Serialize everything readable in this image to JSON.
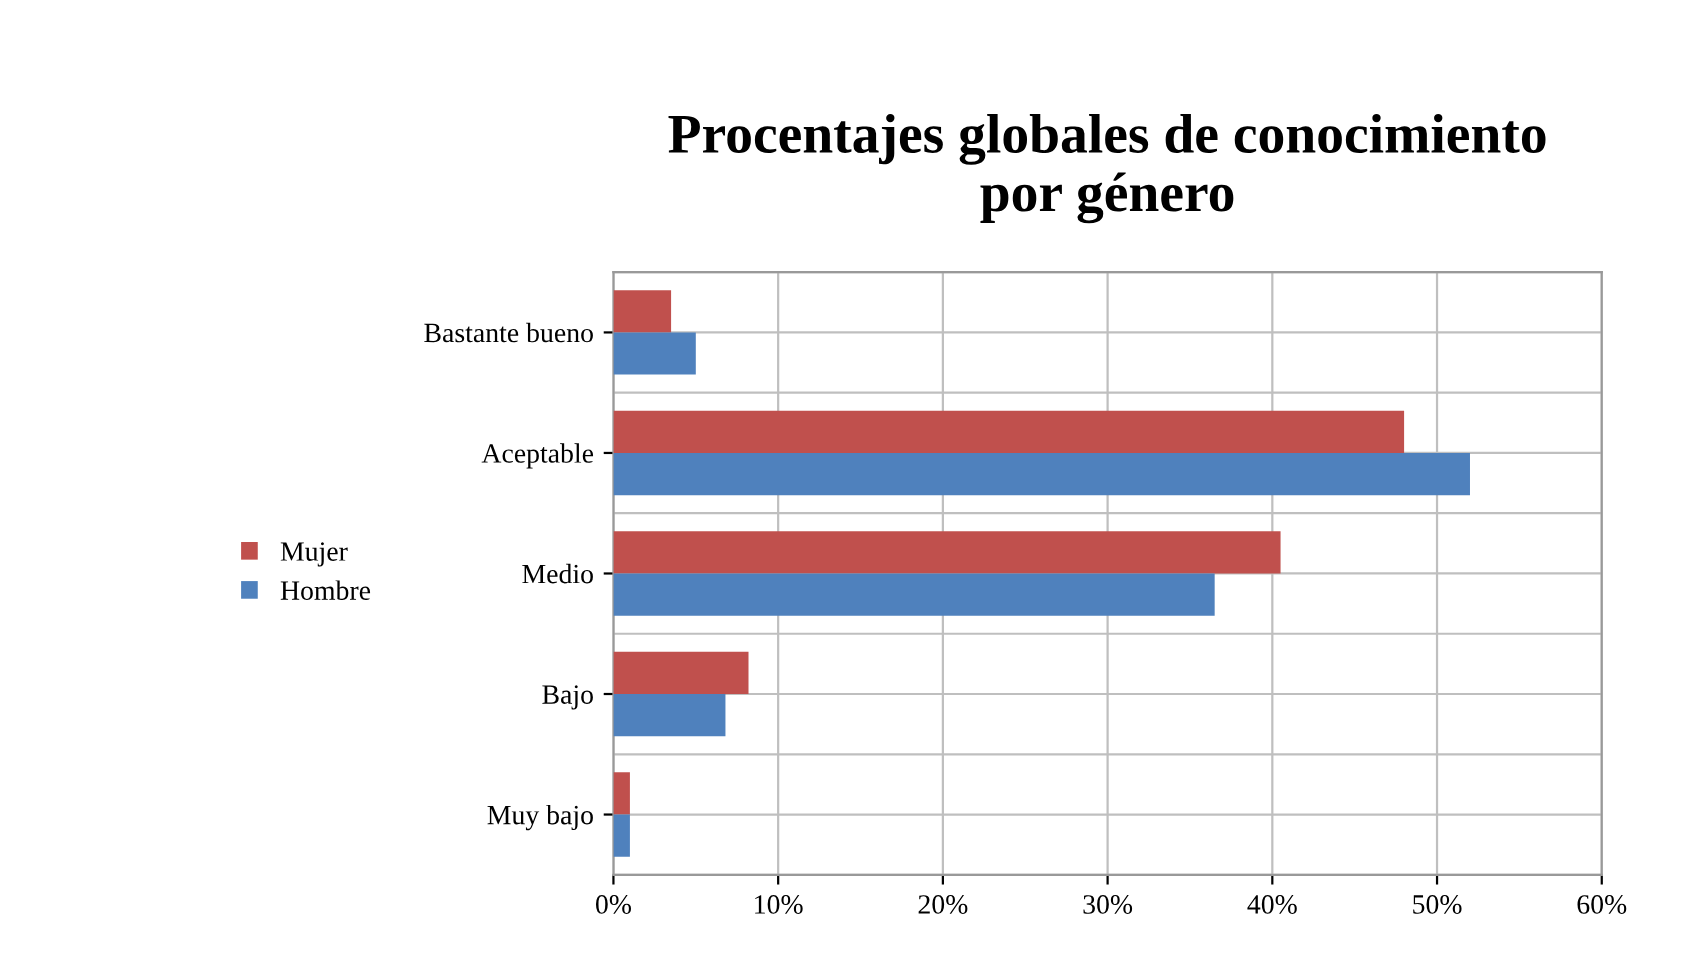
{
  "chart_data": {
    "type": "bar",
    "orientation": "horizontal",
    "title": "Procentajes globales de conocimiento\npor género",
    "categories": [
      "Bastante bueno",
      "Aceptable",
      "Medio",
      "Bajo",
      "Muy bajo"
    ],
    "series": [
      {
        "name": "Mujer",
        "color": "#c0504d",
        "values": [
          3.5,
          48,
          40.5,
          8.2,
          1
        ]
      },
      {
        "name": "Hombre",
        "color": "#4f81bd",
        "values": [
          5,
          52,
          36.5,
          6.8,
          1
        ]
      }
    ],
    "xlim": [
      0,
      60
    ],
    "xticks": [
      {
        "value": 0,
        "label": "0%"
      },
      {
        "value": 10,
        "label": "10%"
      },
      {
        "value": 20,
        "label": "20%"
      },
      {
        "value": 30,
        "label": "30%"
      },
      {
        "value": 40,
        "label": "40%"
      },
      {
        "value": 50,
        "label": "50%"
      },
      {
        "value": 60,
        "label": "60%"
      }
    ],
    "grid": true,
    "legend": "left"
  }
}
